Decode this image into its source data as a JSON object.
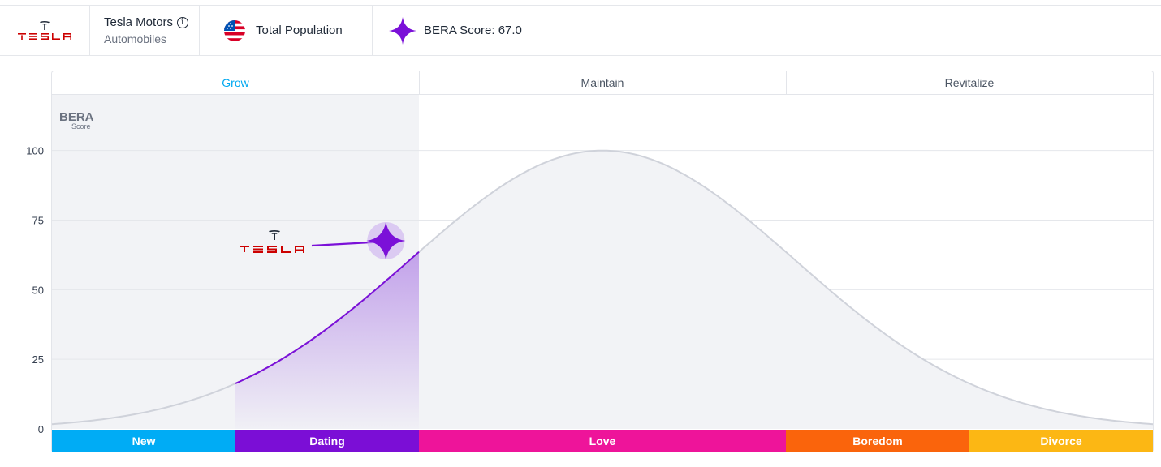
{
  "header": {
    "company_name": "Tesla Motors",
    "industry": "Automobiles",
    "population_label": "Total Population",
    "score_label": "BERA Score: 67.0",
    "logo_text": "TESLA",
    "info_icon": "info-circle-icon",
    "flag_icon": "us-flag-icon",
    "score_icon": "four-point-star-icon"
  },
  "colors": {
    "brand_red": "#cc0000",
    "accent_purple": "#7b10d8",
    "grow_blue": "#00a8f0",
    "curve_fill": "#f2f3f6",
    "curve_line": "#cfd2da"
  },
  "chart_data": {
    "type": "area",
    "title": "",
    "ylabel": "BERA",
    "ylabel_sub": "Score",
    "ylim": [
      0,
      120
    ],
    "yticks": [
      0,
      25,
      50,
      75,
      100
    ],
    "grid": true,
    "curve": {
      "shape": "gaussian",
      "x_range": [
        0,
        6
      ],
      "peak_x": 3,
      "peak_y": 100,
      "sigma": 1.05
    },
    "phases": [
      {
        "name": "Grow",
        "x_start": 0,
        "x_end": 2,
        "active": true
      },
      {
        "name": "Maintain",
        "x_start": 2,
        "x_end": 4,
        "active": false
      },
      {
        "name": "Revitalize",
        "x_start": 4,
        "x_end": 6,
        "active": false
      }
    ],
    "stages": [
      {
        "name": "New",
        "x_start": 0,
        "x_end": 1,
        "color": "#00acf5"
      },
      {
        "name": "Dating",
        "x_start": 1,
        "x_end": 2,
        "color": "#7b0ed6"
      },
      {
        "name": "Love",
        "x_start": 2,
        "x_end": 4,
        "color": "#ee149a"
      },
      {
        "name": "Boredom",
        "x_start": 4,
        "x_end": 5,
        "color": "#fa640c"
      },
      {
        "name": "Divorce",
        "x_start": 5,
        "x_end": 6,
        "color": "#fcb714"
      }
    ],
    "highlight": {
      "stage": "Dating",
      "x_start": 1,
      "x_end": 2
    },
    "marker": {
      "label": "TESLA",
      "x": 1.82,
      "y": 67.0
    }
  }
}
